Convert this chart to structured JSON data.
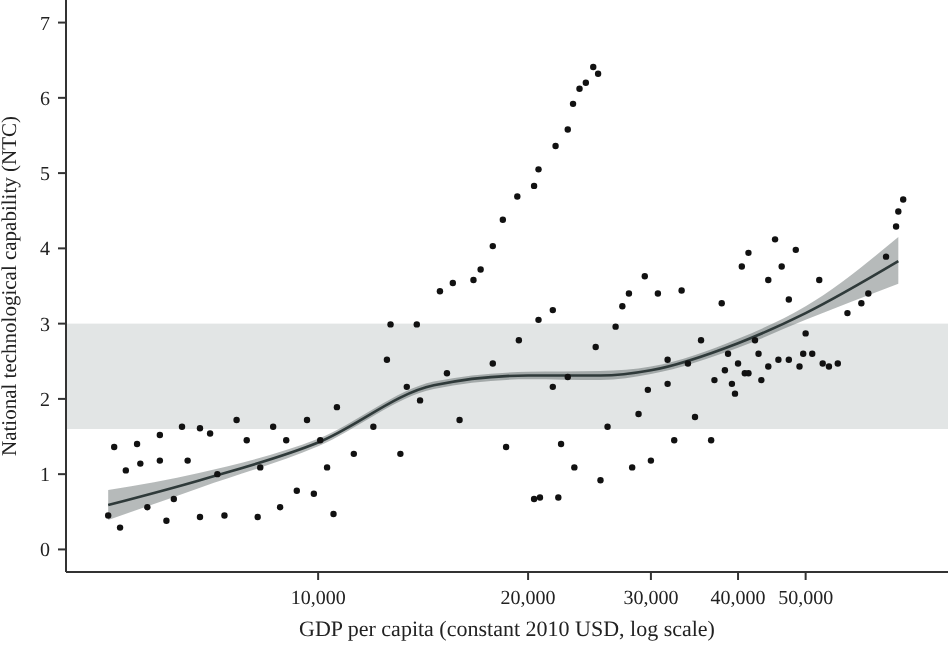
{
  "chart_data": {
    "type": "scatter",
    "xlabel": "GDP per capita (constant 2010 USD, log scale)",
    "ylabel": "National technological capability (NTC)",
    "log": "x",
    "grid": false,
    "xlim": [
      4350,
      80000
    ],
    "ylim": [
      -0.3,
      7.3
    ],
    "xticks": [
      {
        "value": 10000,
        "label": "10,000"
      },
      {
        "value": 20000,
        "label": "20,000"
      },
      {
        "value": 30000,
        "label": "30,000"
      },
      {
        "value": 40000,
        "label": "40,000"
      },
      {
        "value": 50000,
        "label": "50,000"
      }
    ],
    "yticks": [
      0,
      1,
      2,
      3,
      4,
      5,
      6,
      7
    ],
    "bands": [
      {
        "axis": "y",
        "from": 1.6,
        "to": 3.0,
        "color": "#e2e5e5"
      }
    ],
    "series": [
      {
        "color": "#111111",
        "marker": "circle",
        "x": [
          5000,
          5100,
          5200,
          5300,
          5500,
          5560,
          5690,
          5930,
          5930,
          6060,
          6210,
          6380,
          6500,
          6770,
          6770,
          7000,
          7170,
          7340,
          7640,
          7900,
          8190,
          8260,
          8620,
          8820,
          9000,
          9320,
          9640,
          9860,
          10070,
          10300,
          10520,
          10640,
          11250,
          12000,
          12550,
          12700,
          13120,
          13400,
          13850,
          14000,
          14950,
          15300,
          15600,
          15950,
          16700,
          17100,
          17800,
          17800,
          18400,
          18600,
          19300,
          19400,
          20400,
          20700,
          20700,
          20400,
          20800,
          21700,
          21900,
          21700,
          22100,
          22300,
          22800,
          22800,
          23200,
          23300,
          23700,
          24200,
          24800,
          25200,
          25000,
          25400,
          26000,
          26700,
          27300,
          27900,
          28200,
          28800,
          29400,
          29700,
          30000,
          30700,
          31700,
          32400,
          33200,
          33900,
          34700,
          35400,
          36600,
          37000,
          37900,
          38700,
          39600,
          40500,
          40900,
          41400,
          42300,
          43200,
          44200,
          45200,
          45700,
          46200,
          47300,
          48400,
          49000,
          50000,
          51100,
          52300,
          54000,
          55600,
          57400,
          60100,
          61500,
          65200,
          67400,
          67900,
          69000,
          38300,
          39200,
          40000,
          41400,
          42800,
          44200,
          47300,
          49600,
          52900,
          31700
        ],
        "values": [
          0.45,
          1.36,
          0.29,
          1.05,
          1.4,
          1.14,
          0.56,
          1.52,
          1.18,
          0.38,
          0.67,
          1.63,
          1.18,
          1.61,
          0.43,
          1.54,
          1.0,
          0.45,
          1.72,
          1.45,
          0.43,
          1.09,
          1.63,
          0.56,
          1.45,
          0.78,
          1.72,
          0.74,
          1.45,
          1.09,
          0.47,
          1.89,
          1.27,
          1.63,
          2.52,
          2.99,
          1.27,
          2.16,
          2.99,
          1.98,
          3.43,
          2.34,
          3.54,
          1.72,
          3.58,
          3.72,
          4.03,
          2.47,
          4.38,
          1.36,
          4.69,
          2.78,
          4.83,
          5.05,
          3.05,
          0.67,
          0.69,
          3.18,
          5.36,
          2.16,
          0.69,
          1.4,
          5.58,
          2.29,
          5.92,
          1.09,
          6.12,
          6.2,
          6.41,
          6.32,
          2.69,
          0.92,
          1.63,
          2.96,
          3.23,
          3.4,
          1.09,
          1.8,
          3.63,
          2.12,
          1.18,
          3.4,
          2.2,
          1.45,
          3.44,
          2.47,
          1.76,
          2.78,
          1.45,
          2.25,
          3.27,
          2.6,
          2.07,
          3.76,
          2.34,
          3.94,
          2.78,
          2.25,
          3.58,
          4.12,
          2.52,
          3.76,
          3.32,
          3.98,
          2.43,
          2.87,
          2.6,
          3.58,
          2.43,
          2.47,
          3.14,
          3.27,
          3.4,
          3.89,
          4.29,
          4.49,
          4.65,
          2.38,
          2.2,
          2.47,
          2.34,
          2.6,
          2.43,
          2.52,
          2.6,
          2.47,
          2.52
        ]
      },
      {
        "type": "line",
        "color": "#2f3a3a",
        "line_style": "solid",
        "x": [
          5000,
          6770,
          10000,
          14650,
          20000,
          25400,
          30000,
          40000,
          50000,
          67900
        ],
        "values": [
          0.59,
          0.92,
          1.42,
          2.18,
          2.31,
          2.31,
          2.38,
          2.74,
          3.14,
          3.83
        ],
        "lower": [
          0.39,
          0.82,
          1.37,
          2.13,
          2.26,
          2.25,
          2.33,
          2.68,
          3.05,
          3.53
        ],
        "upper": [
          0.79,
          1.02,
          1.47,
          2.23,
          2.36,
          2.37,
          2.43,
          2.8,
          3.23,
          4.15
        ]
      }
    ]
  }
}
